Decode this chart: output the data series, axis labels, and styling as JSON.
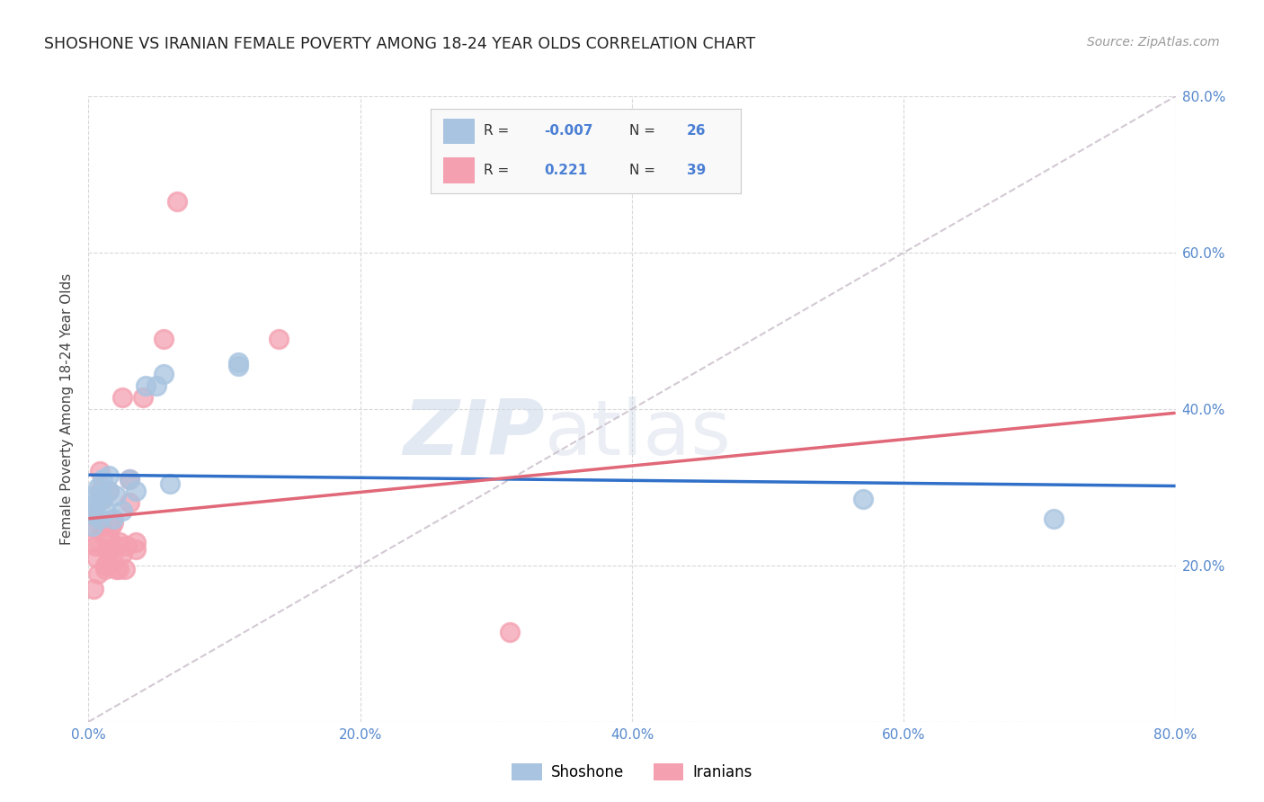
{
  "title": "SHOSHONE VS IRANIAN FEMALE POVERTY AMONG 18-24 YEAR OLDS CORRELATION CHART",
  "source": "Source: ZipAtlas.com",
  "ylabel": "Female Poverty Among 18-24 Year Olds",
  "xlim": [
    0.0,
    0.8
  ],
  "ylim": [
    0.0,
    0.8
  ],
  "xticks": [
    0.0,
    0.2,
    0.4,
    0.6,
    0.8
  ],
  "yticks": [
    0.0,
    0.2,
    0.4,
    0.6,
    0.8
  ],
  "xtick_labels": [
    "0.0%",
    "20.0%",
    "40.0%",
    "60.0%",
    "80.0%"
  ],
  "ytick_labels": [
    "",
    "20.0%",
    "40.0%",
    "60.0%",
    "80.0%"
  ],
  "shoshone_R": -0.007,
  "shoshone_N": 26,
  "iranian_R": 0.221,
  "iranian_N": 39,
  "shoshone_color": "#a8c4e0",
  "iranian_color": "#f4a0b0",
  "shoshone_line_color": "#3070c8",
  "iranian_line_color": "#e06878",
  "diag_line_color": "#c8bcc8",
  "background_color": "#ffffff",
  "grid_color": "#d8d8d8",
  "shoshone_x": [
    0.002,
    0.003,
    0.004,
    0.005,
    0.006,
    0.007,
    0.008,
    0.009,
    0.01,
    0.01,
    0.012,
    0.015,
    0.015,
    0.018,
    0.02,
    0.025,
    0.03,
    0.035,
    0.042,
    0.05,
    0.055,
    0.06,
    0.11,
    0.11,
    0.57,
    0.71
  ],
  "shoshone_y": [
    0.27,
    0.25,
    0.265,
    0.28,
    0.29,
    0.3,
    0.26,
    0.29,
    0.285,
    0.31,
    0.27,
    0.295,
    0.315,
    0.26,
    0.29,
    0.27,
    0.31,
    0.295,
    0.43,
    0.43,
    0.445,
    0.305,
    0.455,
    0.46,
    0.285,
    0.26
  ],
  "iranian_x": [
    0.001,
    0.002,
    0.003,
    0.004,
    0.005,
    0.006,
    0.007,
    0.008,
    0.008,
    0.009,
    0.01,
    0.011,
    0.012,
    0.012,
    0.013,
    0.014,
    0.015,
    0.015,
    0.016,
    0.017,
    0.018,
    0.018,
    0.02,
    0.021,
    0.022,
    0.023,
    0.025,
    0.025,
    0.027,
    0.028,
    0.03,
    0.03,
    0.035,
    0.035,
    0.04,
    0.055,
    0.065,
    0.14,
    0.31
  ],
  "iranian_y": [
    0.25,
    0.265,
    0.23,
    0.17,
    0.225,
    0.21,
    0.19,
    0.295,
    0.32,
    0.25,
    0.285,
    0.24,
    0.2,
    0.195,
    0.22,
    0.205,
    0.295,
    0.235,
    0.22,
    0.25,
    0.215,
    0.255,
    0.195,
    0.225,
    0.195,
    0.23,
    0.215,
    0.415,
    0.195,
    0.225,
    0.28,
    0.31,
    0.22,
    0.23,
    0.415,
    0.49,
    0.665,
    0.49,
    0.115
  ],
  "watermark_zip": "ZIP",
  "watermark_atlas": "atlas",
  "legend_box_color": "#f9f9f9",
  "legend_border_color": "#cccccc"
}
